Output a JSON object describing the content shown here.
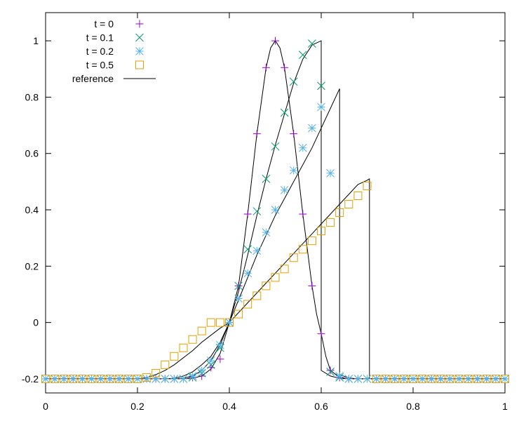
{
  "chart_data": {
    "type": "scatter",
    "title": "",
    "xlabel": "",
    "ylabel": "",
    "xlim": [
      0,
      1
    ],
    "ylim": [
      -0.25,
      1.1
    ],
    "xticks": [
      0,
      0.2,
      0.4,
      0.6,
      0.8,
      1
    ],
    "yticks": [
      -0.2,
      0,
      0.2,
      0.4,
      0.6,
      0.8,
      1
    ],
    "xtick_labels": [
      "0",
      "0.2",
      "0.4",
      "0.6",
      "0.8",
      "1"
    ],
    "ytick_labels": [
      "-0.2",
      "0",
      "0.2",
      "0.4",
      "0.6",
      "0.8",
      "1"
    ],
    "grid": false,
    "legend_position": "top-left",
    "series": [
      {
        "name": "t = 0",
        "marker": "plus",
        "color": "#9400d3",
        "x": [
          0.0,
          0.02,
          0.04,
          0.06,
          0.08,
          0.1,
          0.12,
          0.14,
          0.16,
          0.18,
          0.2,
          0.22,
          0.24,
          0.26,
          0.28,
          0.3,
          0.32,
          0.34,
          0.36,
          0.38,
          0.4,
          0.42,
          0.44,
          0.46,
          0.48,
          0.5,
          0.52,
          0.54,
          0.56,
          0.58,
          0.6,
          0.62,
          0.64,
          0.66,
          0.68,
          0.7,
          0.72,
          0.74,
          0.76,
          0.78,
          0.8,
          0.82,
          0.84,
          0.86,
          0.88,
          0.9,
          0.92,
          0.94,
          0.96,
          0.98,
          1.0
        ],
        "y": [
          -0.2,
          -0.2,
          -0.2,
          -0.2,
          -0.2,
          -0.2,
          -0.2,
          -0.2,
          -0.2,
          -0.2,
          -0.2,
          -0.2,
          -0.2,
          -0.2,
          -0.2,
          -0.2,
          -0.195,
          -0.19,
          -0.16,
          -0.13,
          0.0,
          0.13,
          0.385,
          0.67,
          0.905,
          1.0,
          0.905,
          0.67,
          0.385,
          0.13,
          -0.04,
          -0.17,
          -0.195,
          -0.2,
          -0.2,
          -0.2,
          -0.2,
          -0.2,
          -0.2,
          -0.2,
          -0.2,
          -0.2,
          -0.2,
          -0.2,
          -0.2,
          -0.2,
          -0.2,
          -0.2,
          -0.2,
          -0.2,
          -0.2
        ]
      },
      {
        "name": "t = 0.1",
        "marker": "cross",
        "color": "#009e73",
        "x": [
          0.0,
          0.02,
          0.04,
          0.06,
          0.08,
          0.1,
          0.12,
          0.14,
          0.16,
          0.18,
          0.2,
          0.22,
          0.24,
          0.26,
          0.28,
          0.3,
          0.32,
          0.34,
          0.36,
          0.38,
          0.4,
          0.42,
          0.44,
          0.46,
          0.48,
          0.5,
          0.52,
          0.54,
          0.56,
          0.58,
          0.6,
          0.62,
          0.64,
          0.66,
          0.68,
          0.7,
          0.72,
          0.74,
          0.76,
          0.78,
          0.8,
          0.82,
          0.84,
          0.86,
          0.88,
          0.9,
          0.92,
          0.94,
          0.96,
          0.98,
          1.0
        ],
        "y": [
          -0.2,
          -0.2,
          -0.2,
          -0.2,
          -0.2,
          -0.2,
          -0.2,
          -0.2,
          -0.2,
          -0.2,
          -0.2,
          -0.2,
          -0.2,
          -0.2,
          -0.2,
          -0.2,
          -0.195,
          -0.18,
          -0.15,
          -0.09,
          0.0,
          0.13,
          0.26,
          0.395,
          0.51,
          0.625,
          0.745,
          0.855,
          0.95,
          0.99,
          0.84,
          -0.175,
          -0.195,
          -0.2,
          -0.2,
          -0.2,
          -0.2,
          -0.2,
          -0.2,
          -0.2,
          -0.2,
          -0.2,
          -0.2,
          -0.2,
          -0.2,
          -0.2,
          -0.2,
          -0.2,
          -0.2,
          -0.2,
          -0.2
        ]
      },
      {
        "name": "t = 0.2",
        "marker": "star",
        "color": "#56b4e9",
        "x": [
          0.0,
          0.02,
          0.04,
          0.06,
          0.08,
          0.1,
          0.12,
          0.14,
          0.16,
          0.18,
          0.2,
          0.22,
          0.24,
          0.26,
          0.28,
          0.3,
          0.32,
          0.34,
          0.36,
          0.38,
          0.4,
          0.42,
          0.44,
          0.46,
          0.48,
          0.5,
          0.52,
          0.54,
          0.56,
          0.58,
          0.6,
          0.62,
          0.64,
          0.66,
          0.68,
          0.7,
          0.72,
          0.74,
          0.76,
          0.78,
          0.8,
          0.82,
          0.84,
          0.86,
          0.88,
          0.9,
          0.92,
          0.94,
          0.96,
          0.98,
          1.0
        ],
        "y": [
          -0.2,
          -0.2,
          -0.2,
          -0.2,
          -0.2,
          -0.2,
          -0.2,
          -0.2,
          -0.2,
          -0.2,
          -0.2,
          -0.2,
          -0.2,
          -0.2,
          -0.2,
          -0.2,
          -0.19,
          -0.17,
          -0.135,
          -0.08,
          0.0,
          0.085,
          0.175,
          0.255,
          0.32,
          0.4,
          0.47,
          0.54,
          0.62,
          0.69,
          0.765,
          0.53,
          -0.19,
          -0.2,
          -0.2,
          -0.2,
          -0.2,
          -0.2,
          -0.2,
          -0.2,
          -0.2,
          -0.2,
          -0.2,
          -0.2,
          -0.2,
          -0.2,
          -0.2,
          -0.2,
          -0.2,
          -0.2,
          -0.2
        ]
      },
      {
        "name": "t = 0.5",
        "marker": "square",
        "color": "#e69f00",
        "x": [
          0.0,
          0.02,
          0.04,
          0.06,
          0.08,
          0.1,
          0.12,
          0.14,
          0.16,
          0.18,
          0.2,
          0.22,
          0.24,
          0.26,
          0.28,
          0.3,
          0.32,
          0.34,
          0.36,
          0.38,
          0.4,
          0.42,
          0.44,
          0.46,
          0.48,
          0.5,
          0.52,
          0.54,
          0.56,
          0.58,
          0.6,
          0.62,
          0.64,
          0.66,
          0.68,
          0.7,
          0.72,
          0.74,
          0.76,
          0.78,
          0.8,
          0.82,
          0.84,
          0.86,
          0.88,
          0.9,
          0.92,
          0.94,
          0.96,
          0.98,
          1.0
        ],
        "y": [
          -0.2,
          -0.2,
          -0.2,
          -0.2,
          -0.2,
          -0.2,
          -0.2,
          -0.2,
          -0.2,
          -0.2,
          -0.2,
          -0.195,
          -0.18,
          -0.15,
          -0.12,
          -0.09,
          -0.06,
          -0.03,
          0.0,
          0.0,
          0.0,
          0.03,
          0.065,
          0.095,
          0.13,
          0.16,
          0.19,
          0.23,
          0.26,
          0.29,
          0.325,
          0.355,
          0.39,
          0.42,
          0.45,
          0.485,
          -0.2,
          -0.2,
          -0.2,
          -0.2,
          -0.2,
          -0.2,
          -0.2,
          -0.2,
          -0.2,
          -0.2,
          -0.2,
          -0.2,
          -0.2,
          -0.2,
          -0.2
        ]
      }
    ],
    "reference": {
      "name": "reference",
      "color": "#000000",
      "curves": [
        {
          "x": [
            0.0,
            0.3,
            0.32,
            0.34,
            0.36,
            0.38,
            0.4,
            0.42,
            0.44,
            0.46,
            0.48,
            0.49,
            0.5,
            0.51,
            0.52,
            0.54,
            0.56,
            0.58,
            0.59,
            0.6,
            0.61,
            0.62,
            0.64,
            0.66,
            0.68,
            1.0
          ],
          "y": [
            -0.2,
            -0.2,
            -0.198,
            -0.19,
            -0.165,
            -0.11,
            0.0,
            0.13,
            0.385,
            0.67,
            0.905,
            0.975,
            1.0,
            0.975,
            0.905,
            0.67,
            0.385,
            0.13,
            0.03,
            -0.04,
            -0.12,
            -0.17,
            -0.195,
            -0.2,
            -0.2,
            -0.2
          ]
        },
        {
          "x": [
            0.0,
            0.28,
            0.3,
            0.32,
            0.34,
            0.36,
            0.38,
            0.4,
            0.42,
            0.44,
            0.46,
            0.48,
            0.5,
            0.52,
            0.54,
            0.56,
            0.58,
            0.6,
            0.6,
            0.62,
            0.64,
            0.66,
            0.68,
            0.7,
            1.0
          ],
          "y": [
            -0.2,
            -0.2,
            -0.198,
            -0.19,
            -0.17,
            -0.135,
            -0.08,
            0.0,
            0.11,
            0.24,
            0.38,
            0.51,
            0.63,
            0.74,
            0.85,
            0.935,
            0.985,
            1.0,
            -0.17,
            -0.19,
            -0.198,
            -0.2,
            -0.2,
            -0.2,
            -0.2
          ]
        },
        {
          "x": [
            0.0,
            0.26,
            0.28,
            0.3,
            0.32,
            0.34,
            0.36,
            0.38,
            0.4,
            0.42,
            0.44,
            0.46,
            0.48,
            0.5,
            0.52,
            0.54,
            0.56,
            0.58,
            0.6,
            0.62,
            0.64,
            0.64,
            0.66,
            0.68,
            0.7,
            1.0
          ],
          "y": [
            -0.2,
            -0.2,
            -0.198,
            -0.19,
            -0.175,
            -0.15,
            -0.12,
            -0.07,
            0.0,
            0.08,
            0.16,
            0.24,
            0.31,
            0.38,
            0.44,
            0.5,
            0.56,
            0.62,
            0.69,
            0.76,
            0.83,
            -0.185,
            -0.197,
            -0.2,
            -0.2,
            -0.2
          ]
        },
        {
          "x": [
            0.0,
            0.2,
            0.22,
            0.24,
            0.26,
            0.28,
            0.3,
            0.32,
            0.34,
            0.36,
            0.38,
            0.4,
            0.42,
            0.44,
            0.46,
            0.48,
            0.5,
            0.52,
            0.54,
            0.56,
            0.58,
            0.6,
            0.62,
            0.64,
            0.66,
            0.68,
            0.7,
            0.705,
            0.705,
            1.0
          ],
          "y": [
            -0.2,
            -0.2,
            -0.196,
            -0.185,
            -0.17,
            -0.15,
            -0.125,
            -0.1,
            -0.07,
            -0.045,
            -0.02,
            0.0,
            0.035,
            0.07,
            0.105,
            0.14,
            0.175,
            0.21,
            0.245,
            0.28,
            0.315,
            0.35,
            0.385,
            0.42,
            0.455,
            0.49,
            0.505,
            0.51,
            -0.2,
            -0.2
          ]
        }
      ]
    }
  }
}
